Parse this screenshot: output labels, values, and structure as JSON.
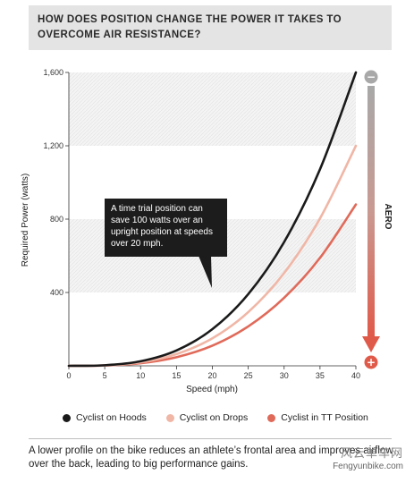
{
  "header": {
    "title": "HOW DOES POSITION CHANGE THE POWER IT TAKES TO OVERCOME AIR RESISTANCE?"
  },
  "chart_data": {
    "type": "line",
    "title": "HOW DOES POSITION CHANGE THE POWER IT TAKES TO OVERCOME AIR RESISTANCE?",
    "xlabel": "Speed (mph)",
    "ylabel": "Required Power (watts)",
    "xlim": [
      0,
      40
    ],
    "ylim": [
      0,
      1600
    ],
    "xticks": [
      0,
      5,
      10,
      15,
      20,
      25,
      30,
      35,
      40
    ],
    "yticks": [
      400,
      800,
      1200,
      1600
    ],
    "ytick_labels": [
      "400",
      "800",
      "1,200",
      "1,600"
    ],
    "x": [
      0,
      5,
      10,
      15,
      20,
      25,
      30,
      35,
      40
    ],
    "series": [
      {
        "name": "Cyclist on Hoods",
        "color": "#1a1a1a",
        "values": [
          0,
          3,
          25,
          84,
          200,
          391,
          675,
          1072,
          1600
        ]
      },
      {
        "name": "Cyclist on Drops",
        "color": "#f0b6a6",
        "values": [
          0,
          2,
          19,
          64,
          150,
          293,
          506,
          804,
          1200
        ]
      },
      {
        "name": "Cyclist in TT Position",
        "color": "#e06a5a",
        "values": [
          0,
          2,
          14,
          47,
          110,
          215,
          371,
          589,
          880
        ]
      }
    ],
    "grid": "bands",
    "legend": "bottom",
    "annotations": [
      "A time trial position can save 100 watts over an upright position at speeds over 20 mph."
    ],
    "arrow": {
      "label": "AERO",
      "top_symbol": "−",
      "bottom_symbol": "+",
      "color_top": "#9a9a9a",
      "color_bottom": "#e05a4a"
    }
  },
  "caption": "A lower profile on the bike reduces an athlete’s frontal area and improves airflow over the back, leading to big performance gains.",
  "watermark": {
    "cn": "风云单车网",
    "en": "Fengyunbike.com"
  }
}
